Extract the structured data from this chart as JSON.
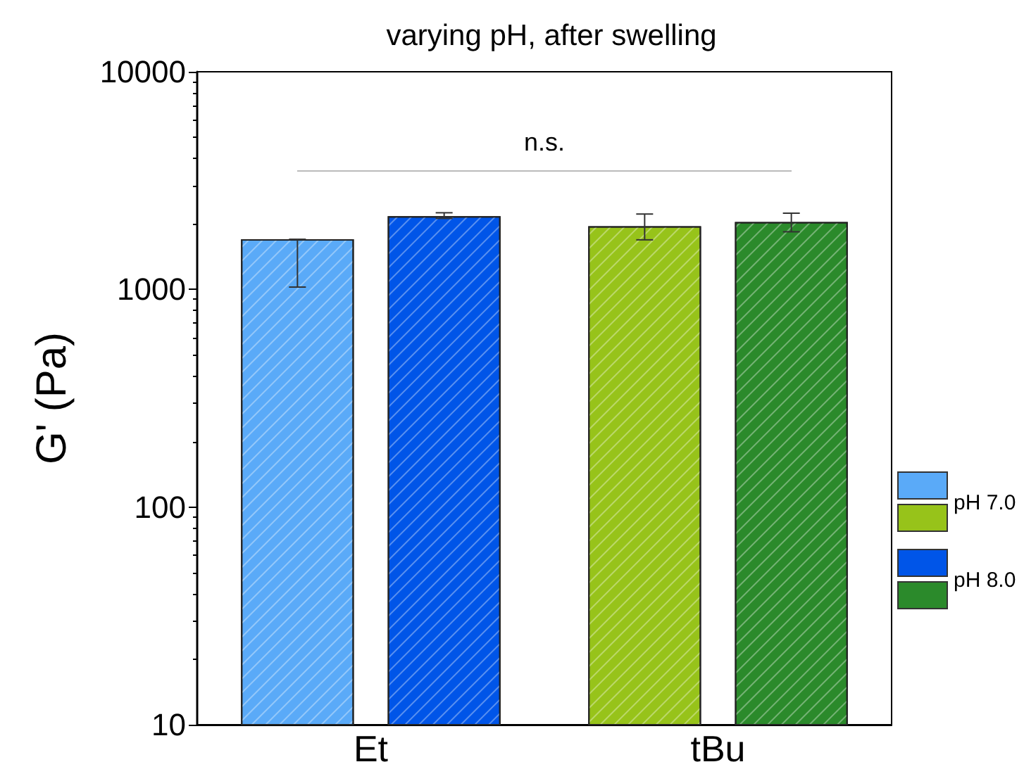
{
  "chart_data": {
    "type": "bar",
    "title": "varying pH, after swelling",
    "ylabel": "G' (Pa)",
    "categories": [
      "Et",
      "tBu"
    ],
    "series": [
      {
        "name": "pH 7.0",
        "colors": [
          "#5aaaf8",
          "#97c31a"
        ],
        "values": [
          1700,
          1950
        ],
        "errors": [
          [
            1025,
            1700
          ],
          [
            1690,
            2220
          ]
        ]
      },
      {
        "name": "pH 8.0",
        "colors": [
          "#0055e8",
          "#2b8a2b"
        ],
        "values": [
          2170,
          2040
        ],
        "errors": [
          [
            2120,
            2250
          ],
          [
            1840,
            2240
          ]
        ]
      }
    ],
    "log": "y",
    "ylim": [
      10,
      10000
    ],
    "yticks": [
      10,
      100,
      1000,
      10000
    ],
    "legend": "right",
    "annotations": [
      "n.s."
    ]
  }
}
